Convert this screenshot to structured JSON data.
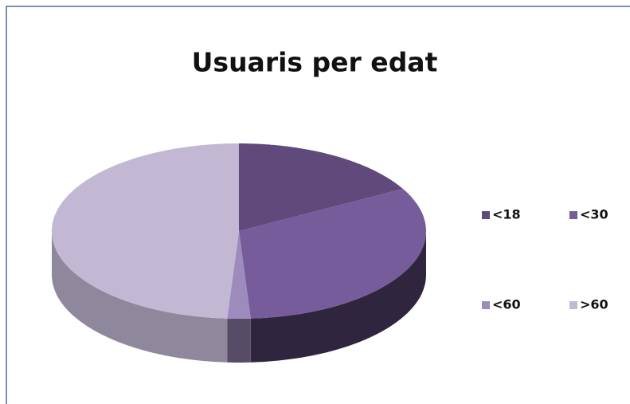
{
  "chart_data": {
    "type": "pie",
    "title": "Usuaris per edat",
    "categories": [
      "<18",
      "<30",
      "<60",
      ">60"
    ],
    "values": [
      17,
      32,
      2,
      49
    ],
    "colors": [
      "#604a7b",
      "#775c9b",
      "#9e8bbd",
      "#c3b8d4"
    ],
    "legend": "right"
  }
}
